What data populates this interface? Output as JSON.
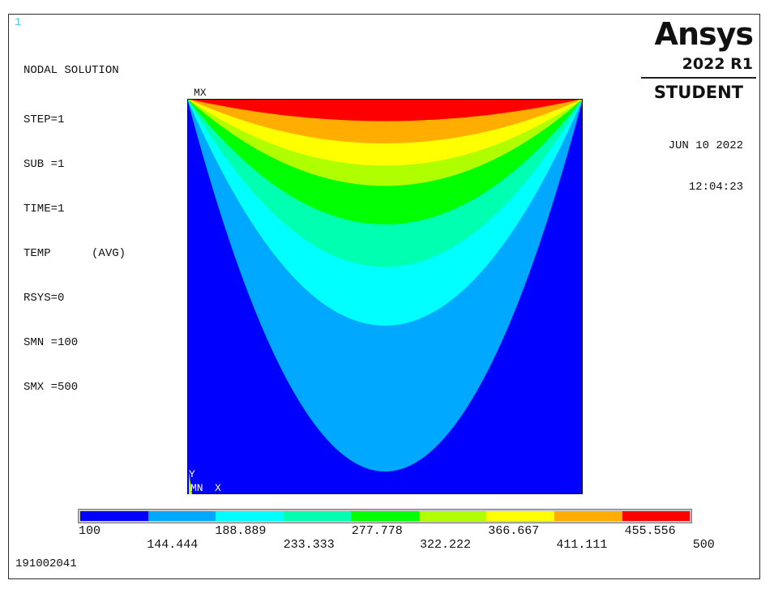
{
  "window_number": "1",
  "info": {
    "title": "NODAL SOLUTION",
    "lines": [
      "STEP=1",
      "SUB =1",
      "TIME=1",
      "TEMP      (AVG)",
      "RSYS=0",
      "SMN =100",
      "SMX =500"
    ]
  },
  "brand": {
    "logo": "Ansys",
    "version": "2022 R1",
    "edition": "STUDENT"
  },
  "date": "JUN 10 2022",
  "time": "12:04:23",
  "plot_labels": {
    "max_node": "MX",
    "min_node": "MN",
    "y_axis": "Y",
    "x_axis": "X"
  },
  "legend": {
    "colors": [
      "#0000ff",
      "#00a8ff",
      "#00ffff",
      "#00ffb0",
      "#00ff00",
      "#b0ff00",
      "#ffff00",
      "#ffae00",
      "#ff0000"
    ],
    "upper_labels": [
      "100",
      "188.889",
      "277.778",
      "366.667",
      "455.556"
    ],
    "lower_labels": [
      "144.444",
      "233.333",
      "322.222",
      "411.111",
      "500"
    ]
  },
  "footer_id": "191002041"
}
